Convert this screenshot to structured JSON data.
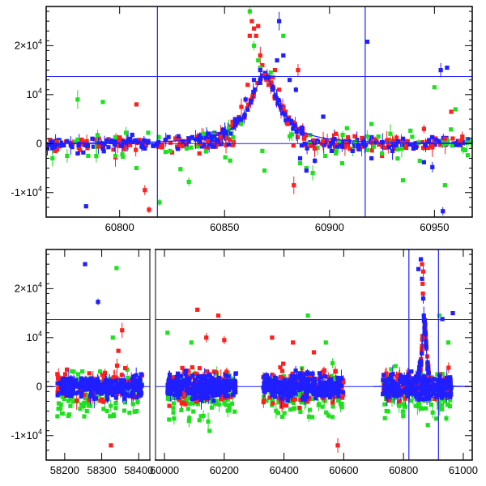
{
  "colors": {
    "red": "#ff1f1f",
    "green": "#1fe01f",
    "blue": "#1f1fff",
    "axis": "#000000",
    "model": "#1f1fff"
  },
  "chart_data": [
    {
      "type": "scatter",
      "title": "",
      "xlabel": "",
      "ylabel": "",
      "xlim": [
        60765,
        60968
      ],
      "ylim": [
        -15000,
        28000
      ],
      "xticks": [
        60800,
        60850,
        60900,
        60950
      ],
      "xtick_labels": [
        "60800",
        "60850",
        "60900",
        "60950"
      ],
      "yticks": [
        -10000,
        0,
        10000,
        20000
      ],
      "ytick_labels": [
        {
          "mant": "-1×10",
          "exp": "4"
        },
        {
          "mant": "0",
          "exp": ""
        },
        {
          "mant": "10",
          "exp": "4"
        },
        {
          "mant": "2×10",
          "exp": "4"
        }
      ],
      "hlines": [
        0,
        13700
      ],
      "vlines": [
        60818,
        60917
      ],
      "model": {
        "t0": 60869,
        "peak": 13700,
        "width": 8.5
      },
      "series": [
        {
          "name": "red",
          "color_key": "red",
          "points": [
            [
              60770,
              300
            ],
            [
              60782,
              800
            ],
            [
              60790,
              -600
            ],
            [
              60798,
              -2800
            ],
            [
              60805,
              -300
            ],
            [
              60808,
              8000
            ],
            [
              60812,
              -9500
            ],
            [
              60814,
              -13500
            ],
            [
              60825,
              -1800
            ],
            [
              60832,
              400
            ],
            [
              60838,
              -2000
            ],
            [
              60842,
              500
            ],
            [
              60848,
              1500
            ],
            [
              60853,
              3500
            ],
            [
              60858,
              7500
            ],
            [
              60861,
              12000
            ],
            [
              60862,
              22000
            ],
            [
              60863,
              25000
            ],
            [
              60864,
              23500
            ],
            [
              60865,
              22000
            ],
            [
              60866,
              24000
            ],
            [
              60867,
              18000
            ],
            [
              60868,
              16000
            ],
            [
              60869,
              14000
            ],
            [
              60870,
              13000
            ],
            [
              60871,
              12000
            ],
            [
              60872,
              12500
            ],
            [
              60873,
              13500
            ],
            [
              60874,
              15000
            ],
            [
              60876,
              11000
            ],
            [
              60878,
              7000
            ],
            [
              60880,
              4000
            ],
            [
              60883,
              -8500
            ],
            [
              60885,
              15000
            ],
            [
              60888,
              1000
            ],
            [
              60891,
              -500
            ],
            [
              60893,
              -1000
            ],
            [
              60897,
              500
            ],
            [
              60903,
              2000
            ],
            [
              60908,
              500
            ],
            [
              60912,
              1500
            ],
            [
              60920,
              200
            ],
            [
              60925,
              -2500
            ],
            [
              60930,
              300
            ],
            [
              60936,
              500
            ],
            [
              60940,
              -1000
            ],
            [
              60945,
              3000
            ],
            [
              60949,
              -500
            ],
            [
              60955,
              1000
            ],
            [
              60958,
              6500
            ],
            [
              60962,
              500
            ]
          ]
        },
        {
          "name": "green",
          "color_key": "green",
          "points": [
            [
              60768,
              -3000
            ],
            [
              60775,
              -2500
            ],
            [
              60780,
              9000
            ],
            [
              60785,
              -2500
            ],
            [
              60792,
              8500
            ],
            [
              60798,
              -2500
            ],
            [
              60803,
              2200
            ],
            [
              60808,
              -5000
            ],
            [
              60819,
              -12000
            ],
            [
              60824,
              -1500
            ],
            [
              60829,
              -5200
            ],
            [
              60833,
              -7800
            ],
            [
              60840,
              2000
            ],
            [
              60845,
              1800
            ],
            [
              60852,
              3000
            ],
            [
              60858,
              4000
            ],
            [
              60862,
              27000
            ],
            [
              60864,
              20000
            ],
            [
              60866,
              17000
            ],
            [
              60867,
              15500
            ],
            [
              60868,
              -1500
            ],
            [
              60869,
              -5500
            ],
            [
              60872,
              14500
            ],
            [
              60878,
              22000
            ],
            [
              60881,
              1500
            ],
            [
              60886,
              -4000
            ],
            [
              60889,
              -5000
            ],
            [
              60892,
              -6000
            ],
            [
              60898,
              -2500
            ],
            [
              60903,
              -2000
            ],
            [
              60906,
              -4000
            ],
            [
              60911,
              -1500
            ],
            [
              60920,
              4000
            ],
            [
              60925,
              -2000
            ],
            [
              60929,
              2000
            ],
            [
              60935,
              -7500
            ],
            [
              60943,
              -3500
            ],
            [
              60950,
              11500
            ],
            [
              60955,
              -8500
            ],
            [
              60960,
              7000
            ]
          ]
        },
        {
          "name": "blue",
          "color_key": "blue",
          "points": [
            [
              60770,
              -300
            ],
            [
              60775,
              500
            ],
            [
              60780,
              -2000
            ],
            [
              60784,
              -12800
            ],
            [
              60787,
              1000
            ],
            [
              60792,
              -1000
            ],
            [
              60796,
              300
            ],
            [
              60802,
              400
            ],
            [
              60806,
              1800
            ],
            [
              60812,
              -1000
            ],
            [
              60816,
              -500
            ],
            [
              60822,
              800
            ],
            [
              60828,
              1500
            ],
            [
              60833,
              500
            ],
            [
              60838,
              1000
            ],
            [
              60845,
              1500
            ],
            [
              60850,
              2500
            ],
            [
              60855,
              5000
            ],
            [
              60860,
              9000
            ],
            [
              60864,
              13000
            ],
            [
              60867,
              15000
            ],
            [
              60870,
              13500
            ],
            [
              60873,
              11000
            ],
            [
              60875,
              17000
            ],
            [
              60876,
              25000
            ],
            [
              60878,
              18000
            ],
            [
              60881,
              13000
            ],
            [
              60884,
              11000
            ],
            [
              60886,
              -3000
            ],
            [
              60889,
              -5500
            ],
            [
              60893,
              -3500
            ],
            [
              60897,
              5500
            ],
            [
              60901,
              -1500
            ],
            [
              60906,
              -500
            ],
            [
              60911,
              -1500
            ],
            [
              60916,
              0
            ],
            [
              60920,
              -3000
            ],
            [
              60925,
              300
            ],
            [
              60930,
              -1500
            ],
            [
              60935,
              1000
            ],
            [
              60940,
              -1000
            ],
            [
              60945,
              -3800
            ],
            [
              60949,
              -4800
            ],
            [
              60953,
              15000
            ],
            [
              60956,
              15500
            ],
            [
              60954,
              -13800
            ],
            [
              60962,
              -300
            ],
            [
              60918,
              20800
            ]
          ]
        }
      ]
    },
    {
      "type": "scatter",
      "title": "",
      "xlabel": "",
      "ylabel": "",
      "xlim": [
        58150,
        61030
      ],
      "ylim": [
        -15000,
        28000
      ],
      "axis_break": {
        "left_range": [
          58150,
          58430
        ],
        "right_range": [
          59970,
          61030
        ]
      },
      "xticks": [
        58200,
        58300,
        58400,
        60000,
        60200,
        60400,
        60600,
        60800,
        61000
      ],
      "xtick_labels": [
        "58200",
        "58300",
        "58400",
        "60000",
        "60200",
        "60400",
        "60600",
        "60800",
        "61000"
      ],
      "yticks": [
        -10000,
        0,
        10000,
        20000
      ],
      "ytick_labels": [
        {
          "mant": "-1×10",
          "exp": "4"
        },
        {
          "mant": "0",
          "exp": ""
        },
        {
          "mant": "10",
          "exp": "4"
        },
        {
          "mant": "2×10",
          "exp": "4"
        }
      ],
      "hlines": [
        0,
        13700
      ],
      "vlines": [
        60818,
        60917
      ],
      "model": {
        "t0": 60869,
        "peak": 13700,
        "width": 8.5
      },
      "clusters": [
        {
          "x_range": [
            58180,
            58410
          ],
          "red_spread": 4000,
          "green_spread": 6000,
          "blue_spread": 2500
        },
        {
          "x_range": [
            60010,
            60240
          ],
          "red_spread": 5000,
          "green_spread": 6500,
          "blue_spread": 3000
        },
        {
          "x_range": [
            60330,
            60600
          ],
          "red_spread": 5000,
          "green_spread": 6000,
          "blue_spread": 3000
        },
        {
          "x_range": [
            60730,
            60960
          ],
          "red_spread": 3500,
          "green_spread": 6000,
          "blue_spread": 3000
        }
      ],
      "outliers": [
        {
          "color_key": "blue",
          "points": [
            [
              58255,
              25000
            ],
            [
              58290,
              17300
            ],
            [
              60965,
              15000
            ],
            [
              60930,
              13800
            ],
            [
              60850,
              24000
            ],
            [
              60858,
              26000
            ],
            [
              60862,
              22000
            ],
            [
              60866,
              18000
            ],
            [
              60868,
              14500
            ],
            [
              60870,
              12000
            ]
          ]
        },
        {
          "color_key": "green",
          "points": [
            [
              58340,
              24200
            ],
            [
              58330,
              10000
            ],
            [
              58260,
              -5000
            ],
            [
              60480,
              14500
            ],
            [
              60010,
              11000
            ],
            [
              60090,
              9000
            ],
            [
              60540,
              9000
            ],
            [
              60920,
              14500
            ],
            [
              60950,
              9000
            ],
            [
              58210,
              -6000
            ]
          ]
        },
        {
          "color_key": "red",
          "points": [
            [
              58355,
              11500
            ],
            [
              58345,
              7300
            ],
            [
              58325,
              -12000
            ],
            [
              60110,
              15700
            ],
            [
              60140,
              10000
            ],
            [
              60180,
              14500
            ],
            [
              60200,
              9500
            ],
            [
              60360,
              10000
            ],
            [
              60430,
              9000
            ],
            [
              60500,
              7000
            ],
            [
              60580,
              -12000
            ],
            [
              60862,
              25000
            ],
            [
              60864,
              21000
            ],
            [
              60866,
              23500
            ],
            [
              60865,
              19000
            ]
          ]
        }
      ]
    }
  ]
}
